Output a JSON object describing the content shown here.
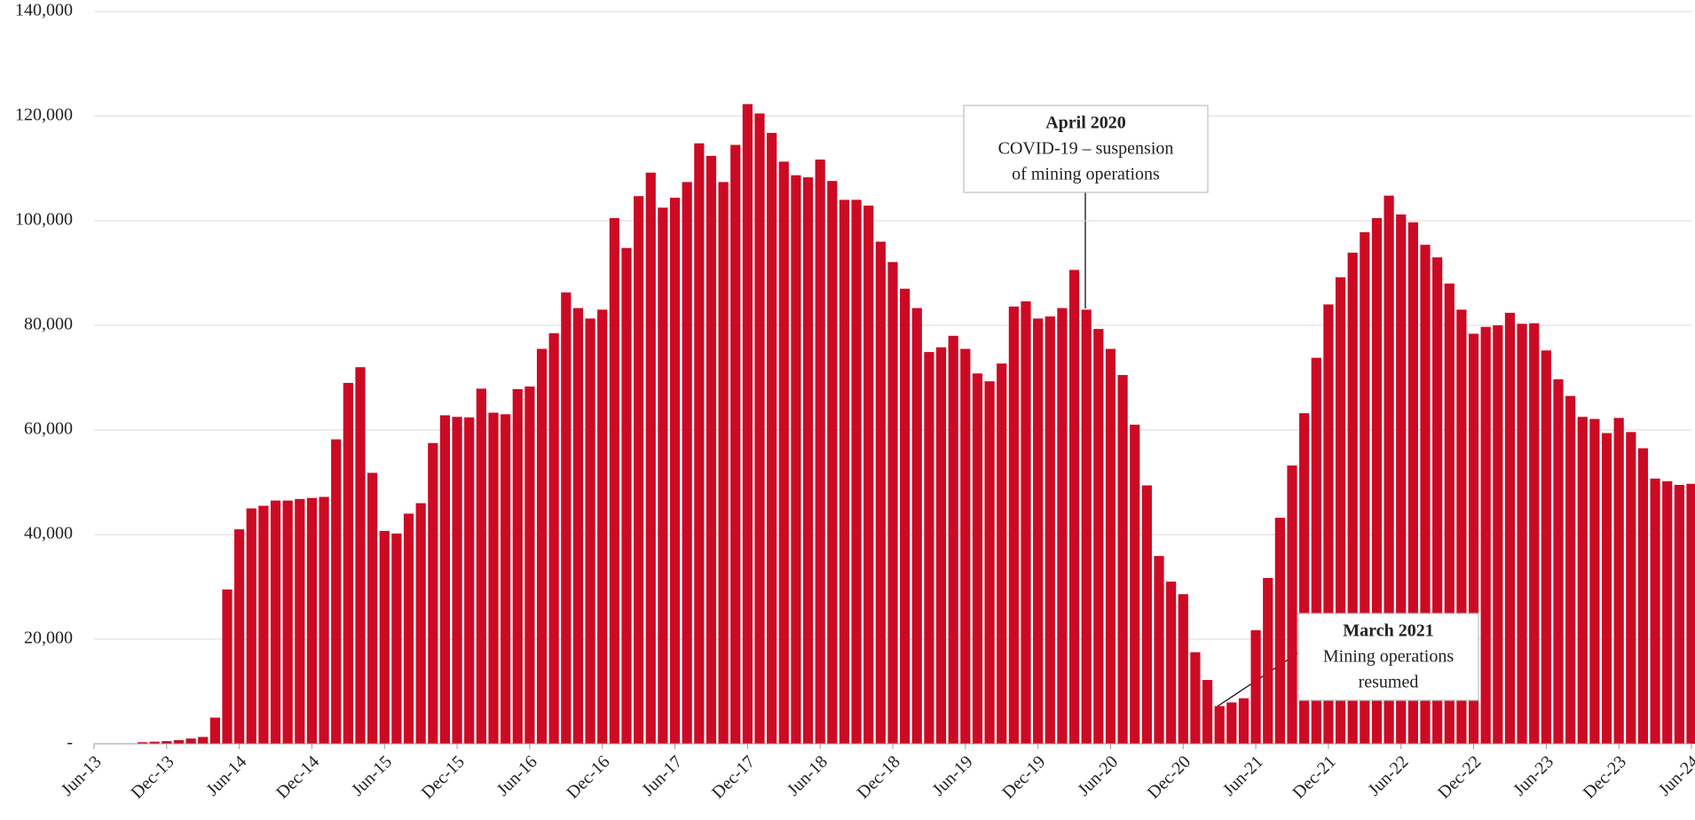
{
  "chart_data": {
    "type": "bar",
    "categories": [
      "Jun-13",
      null,
      null,
      null,
      null,
      null,
      "Dec-13",
      null,
      null,
      null,
      null,
      null,
      "Jun-14",
      null,
      null,
      null,
      null,
      null,
      "Dec-14",
      null,
      null,
      null,
      null,
      null,
      "Jun-15",
      null,
      null,
      null,
      null,
      null,
      "Dec-15",
      null,
      null,
      null,
      null,
      null,
      "Jun-16",
      null,
      null,
      null,
      null,
      null,
      "Dec-16",
      null,
      null,
      null,
      null,
      null,
      "Jun-17",
      null,
      null,
      null,
      null,
      null,
      "Dec-17",
      null,
      null,
      null,
      null,
      null,
      "Jun-18",
      null,
      null,
      null,
      null,
      null,
      "Dec-18",
      null,
      null,
      null,
      null,
      null,
      "Jun-19",
      null,
      null,
      null,
      null,
      null,
      "Dec-19",
      null,
      null,
      null,
      null,
      null,
      "Jun-20",
      null,
      null,
      null,
      null,
      null,
      "Dec-20",
      null,
      null,
      null,
      null,
      null,
      "Jun-21",
      null,
      null,
      null,
      null,
      null,
      "Dec-21",
      null,
      null,
      null,
      null,
      null,
      "Jun-22",
      null,
      null,
      null,
      null,
      null,
      "Dec-22",
      null,
      null,
      null,
      null,
      null,
      "Jun-23",
      null,
      null,
      null,
      null,
      null,
      "Dec-23",
      null,
      null,
      null,
      null,
      null,
      "Jun-24"
    ],
    "values": [
      0,
      0,
      0,
      0,
      300,
      400,
      500,
      700,
      1000,
      1300,
      5000,
      29500,
      41000,
      45000,
      45500,
      46500,
      46500,
      46800,
      47000,
      47200,
      58200,
      69000,
      72000,
      51800,
      40700,
      40200,
      44000,
      46000,
      57500,
      62800,
      62500,
      62400,
      67900,
      63300,
      63000,
      67800,
      68300,
      75500,
      78500,
      86300,
      83300,
      81300,
      83000,
      100500,
      94800,
      104700,
      109200,
      102500,
      104400,
      107400,
      114800,
      112400,
      107400,
      114500,
      122300,
      120500,
      116800,
      111300,
      108700,
      108300,
      111700,
      107600,
      104000,
      104000,
      102900,
      96000,
      92100,
      87000,
      83300,
      74900,
      75800,
      78000,
      75500,
      70800,
      69300,
      72700,
      83600,
      84600,
      81300,
      81700,
      83300,
      90600,
      83000,
      79300,
      75500,
      70500,
      61000,
      49400,
      35900,
      31000,
      28600,
      17500,
      12200,
      7200,
      7900,
      8700,
      21700,
      31700,
      43200,
      53200,
      63200,
      73800,
      84000,
      89200,
      93900,
      97800,
      100500,
      104800,
      101200,
      99700,
      95400,
      93000,
      88000,
      83000,
      78400,
      79700,
      80000,
      82400,
      80300,
      80400,
      75200,
      69700,
      66500,
      62500,
      62100,
      59400,
      62300,
      59600,
      56500,
      50700,
      50200,
      49500,
      49700
    ],
    "color": "#cc0a24",
    "ylim": [
      0,
      140000
    ],
    "yticks": [
      {
        "value": 0,
        "label": "-"
      },
      {
        "value": 20000,
        "label": "20,000"
      },
      {
        "value": 40000,
        "label": "40,000"
      },
      {
        "value": 60000,
        "label": "60,000"
      },
      {
        "value": 80000,
        "label": "80,000"
      },
      {
        "value": 100000,
        "label": "100,000"
      },
      {
        "value": 120000,
        "label": "120,000"
      },
      {
        "value": 140000,
        "label": "140,000"
      }
    ],
    "grid": true,
    "annotations": [
      {
        "title": "April 2020",
        "text": [
          "COVID-19 – suspension",
          "of mining operations"
        ]
      },
      {
        "title": "March 2021",
        "text": [
          "Mining operations",
          "resumed"
        ]
      }
    ]
  }
}
